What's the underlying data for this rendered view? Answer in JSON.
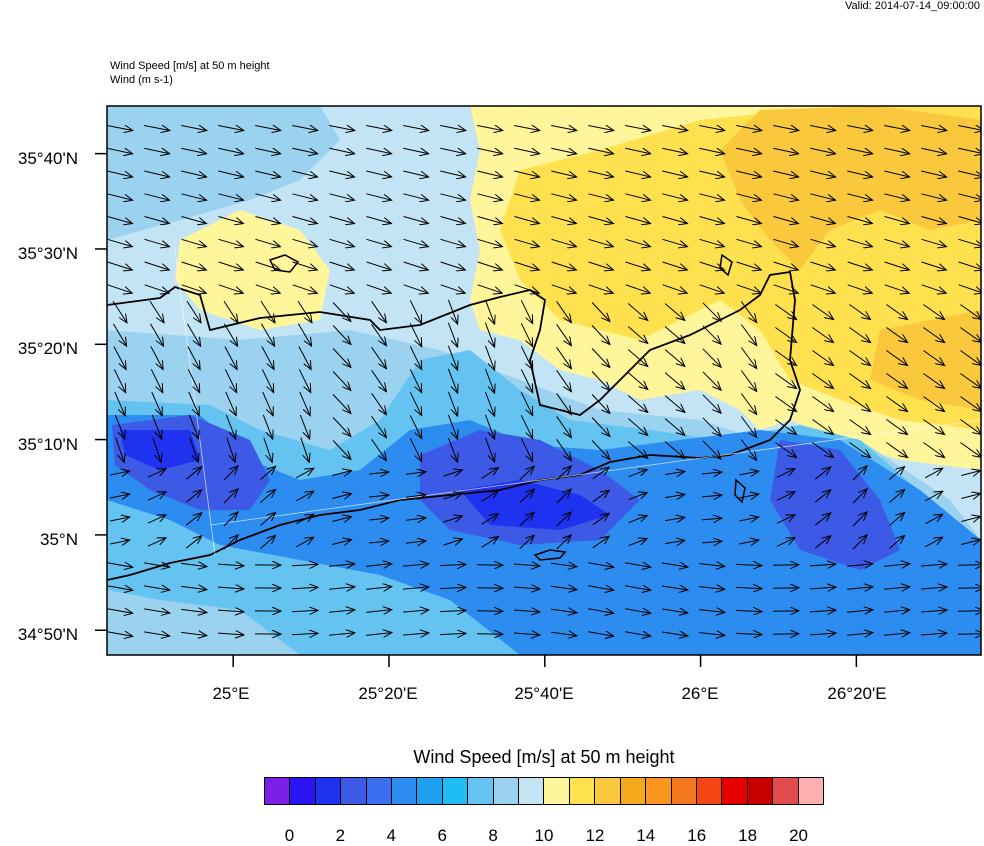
{
  "header": {
    "valid": "Valid: 2014-07-14_09:00:00",
    "subtitle1": "Wind Speed [m/s] at 50 m height",
    "subtitle2": "Wind   (m s-1)"
  },
  "map": {
    "lat_labels": [
      "35°40'N",
      "35°30'N",
      "35°20'N",
      "35°10'N",
      "35°N",
      "34°50'N"
    ],
    "lon_labels": [
      "25°E",
      "25°20'E",
      "25°40'E",
      "26°E",
      "26°20'E"
    ],
    "lat_values": [
      35.6667,
      35.5,
      35.3333,
      35.1667,
      35.0,
      34.8333
    ],
    "lon_values": [
      25.0,
      25.3333,
      25.6667,
      26.0,
      26.3333
    ],
    "extent": {
      "lon_min": 24.73,
      "lon_max": 26.6,
      "lat_min": 34.79,
      "lat_max": 35.75
    },
    "water_color": "#ffffff"
  },
  "colorbar": {
    "title": "Wind Speed [m/s] at 50 m height",
    "colors": [
      "#7b1ee6",
      "#2b14f2",
      "#1e32f0",
      "#3c5ae6",
      "#3c6ef0",
      "#2d8cf0",
      "#1ea0f0",
      "#1ebef5",
      "#64c3f0",
      "#9bd2f0",
      "#c3e4f5",
      "#fff59b",
      "#ffe150",
      "#fac83c",
      "#f5aa1e",
      "#fa961e",
      "#f5781e",
      "#f54614",
      "#e60000",
      "#c80000",
      "#e14b4b",
      "#ffafaf"
    ],
    "tick_labels": [
      "0",
      "2",
      "4",
      "6",
      "8",
      "10",
      "12",
      "14",
      "16",
      "18",
      "20"
    ]
  }
}
